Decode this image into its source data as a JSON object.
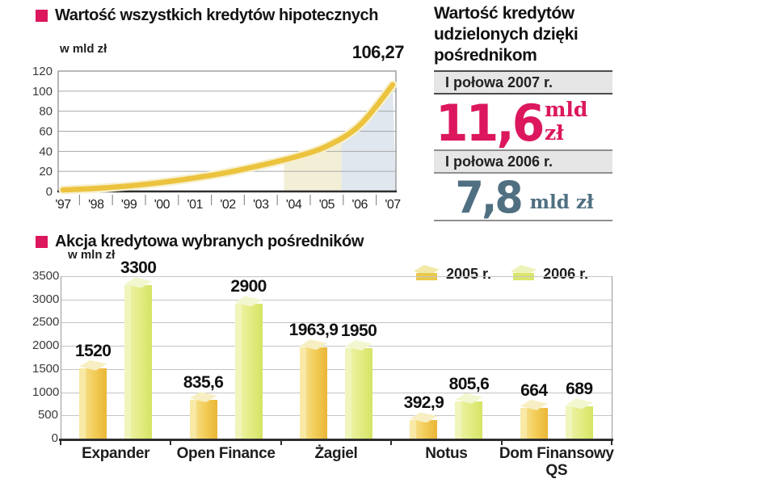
{
  "titles": {
    "chart1": "Wartość wszystkich kredytów hipotecznych",
    "chart1_unit": "w mld zł",
    "chart1_annotation": "106,27",
    "chart2": "Akcja kredytowa wybranych pośredników",
    "chart2_unit": "w mln zł"
  },
  "panel": {
    "title_lines": [
      "Wartość kredytów",
      "udzielonych dzięki",
      "pośrednikom"
    ],
    "rows": [
      {
        "period": "I połowa 2007 r.",
        "value": "11,6",
        "unit": "mld zł",
        "color": "#dc175d"
      },
      {
        "period": "I połowa 2006 r.",
        "value": "7,8",
        "unit": "mld zł",
        "color": "#507082"
      }
    ]
  },
  "colors": {
    "accent_pink": "#dc175d",
    "slate": "#507082",
    "line_gold": "#ecc33e",
    "line_halo": "#f7f0cf",
    "band_cream": "#f3efd7",
    "band_blue": "#e0e7ee",
    "bar_2005_front": [
      "#f8e7a0",
      "#f2cd58",
      "#eab637"
    ],
    "bar_2005_top": "#f7efc3",
    "bar_2005_left": "#f8e9a6",
    "bar_2006_front": [
      "#f0f4b2",
      "#e3ec85",
      "#d5e464"
    ],
    "bar_2006_top": "#f3f7cf",
    "bar_2006_left": "#f0f5bb"
  },
  "chart_data": [
    {
      "type": "line",
      "title": "Wartość wszystkich kredytów hipotecznych",
      "ylabel": "w mld zł",
      "x": [
        1997,
        1998,
        1999,
        2000,
        2001,
        2002,
        2003,
        2004,
        2005,
        2006,
        2007
      ],
      "x_tick_labels": [
        "'97",
        "'98",
        "'99",
        "'00",
        "'01",
        "'02",
        "'03",
        "'04",
        "'05",
        "'06",
        "'07"
      ],
      "values": [
        1.5,
        3,
        5.5,
        9,
        13.5,
        19,
        26,
        34,
        45,
        66,
        106.27
      ],
      "ylim": [
        0,
        120
      ],
      "yticks": [
        0,
        20,
        40,
        60,
        80,
        100,
        120
      ],
      "grid": true,
      "annotation": {
        "text": "106,27",
        "x": 2007,
        "y": 106.27
      },
      "shaded_bands": [
        {
          "from": 2003.7,
          "to": 2005.45,
          "color": "#f3efd7"
        },
        {
          "from": 2005.45,
          "to": 2007,
          "color": "#e0e7ee"
        }
      ]
    },
    {
      "type": "bar",
      "title": "Akcja kredytowa wybranych pośredników",
      "ylabel": "w mln zł",
      "categories": [
        "Expander",
        "Open Finance",
        "Żagiel",
        "Notus",
        "Dom Finansowy QS"
      ],
      "series": [
        {
          "name": "2005 r.",
          "values": [
            1520,
            835.6,
            1963.9,
            392.9,
            664
          ],
          "labels": [
            "1520",
            "835,6",
            "1963,9",
            "392,9",
            "664"
          ]
        },
        {
          "name": "2006 r.",
          "values": [
            3300,
            2900,
            1950,
            805.6,
            689
          ],
          "labels": [
            "3300",
            "2900",
            "1950",
            "805,6",
            "689"
          ]
        }
      ],
      "ylim": [
        0,
        3500
      ],
      "yticks": [
        0,
        500,
        1000,
        1500,
        2000,
        2500,
        3000,
        3500
      ],
      "grid": true,
      "legend_position": "top-right"
    }
  ]
}
